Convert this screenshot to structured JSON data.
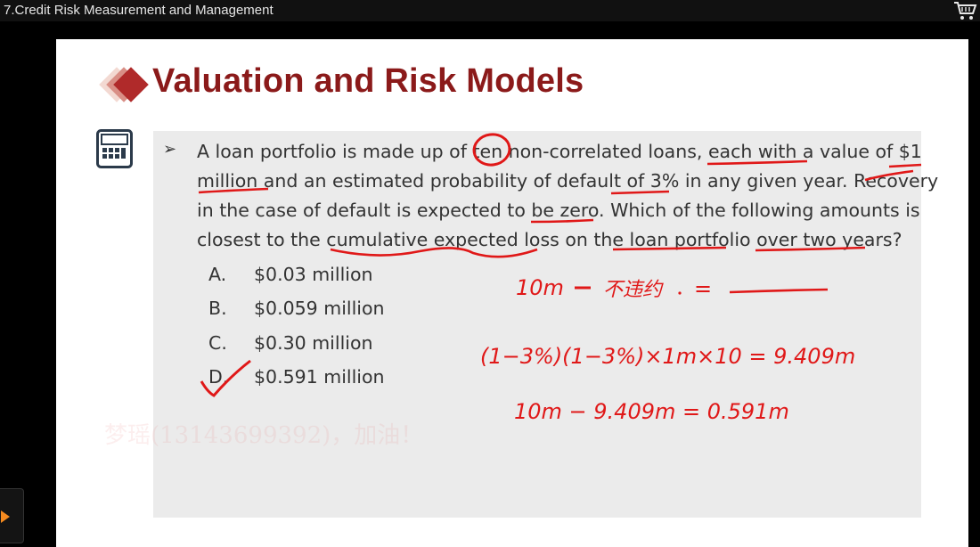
{
  "window": {
    "title": "7.Credit Risk Measurement and Management"
  },
  "toolbar": {
    "cart_icon": "shopping-cart-icon"
  },
  "slide": {
    "heading": "Valuation and Risk Models",
    "calculator_icon": "calculator-icon",
    "question_lines": [
      "A loan portfolio is made up of ten non-correlated loans, each with a value of $1",
      "million and an estimated probability of default of 3% in any given year. Recovery",
      "in the case of default is expected to be zero. Which of the following amounts is",
      "closest to the cumulative expected loss on the loan portfolio over two years?"
    ],
    "options": [
      {
        "letter": "A.",
        "text": "$0.03 million"
      },
      {
        "letter": "B.",
        "text": "$0.059 million"
      },
      {
        "letter": "C.",
        "text": "$0.30 million"
      },
      {
        "letter": "D.",
        "text": "$0.591 million"
      }
    ],
    "watermark": "梦瑶(13143699392)，加油！",
    "handwriting": {
      "line1_left": "10m",
      "line1_mid": "不违约",
      "line1_eq": "=",
      "line2": "(1−3%)(1−3%)×1m×10 = 9.409m",
      "line3": "10m − 9.409m = 0.591m"
    }
  },
  "colors": {
    "heading": "#8b1a1a",
    "ink": "#e01818",
    "panel": "#ebebeb",
    "accent": "#f58a1f"
  }
}
